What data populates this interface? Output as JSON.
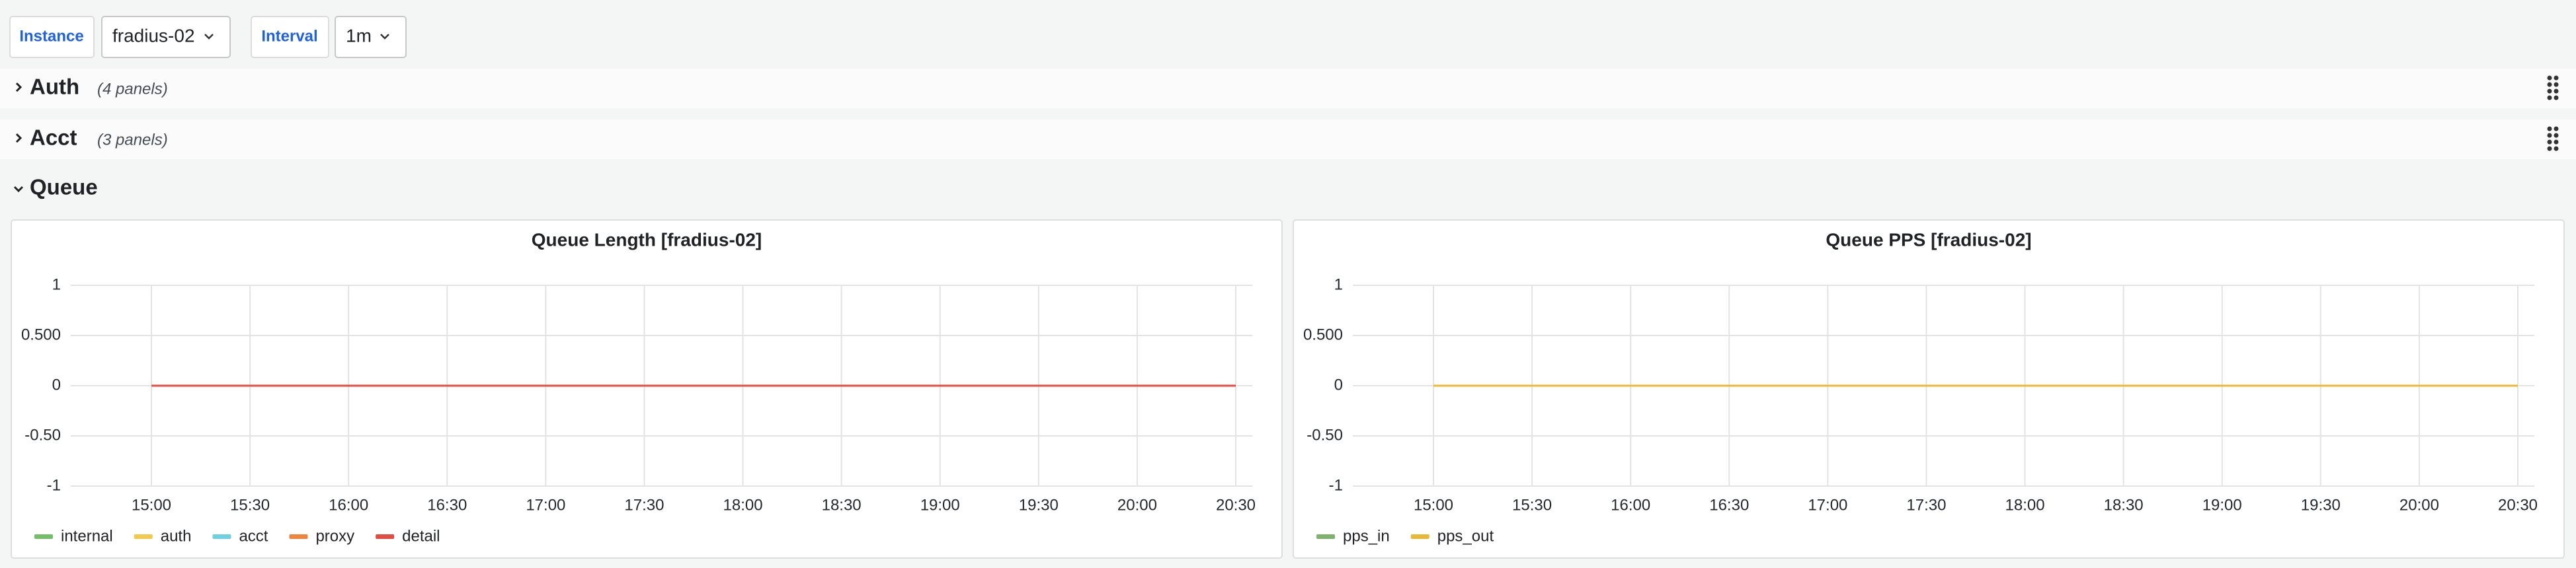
{
  "variables": [
    {
      "label": "Instance",
      "value": "fradius-02"
    },
    {
      "label": "Interval",
      "value": "1m"
    }
  ],
  "rows": [
    {
      "title": "Auth",
      "count": "(4 panels)"
    },
    {
      "title": "Acct",
      "count": "(3 panels)"
    },
    {
      "title": "Queue"
    }
  ],
  "chart_data": [
    {
      "type": "line",
      "title": "Queue Length [fradius-02]",
      "categories": [
        "15:00",
        "15:30",
        "16:00",
        "16:30",
        "17:00",
        "17:30",
        "18:00",
        "18:30",
        "19:00",
        "19:30",
        "20:00",
        "20:30"
      ],
      "series": [
        {
          "name": "internal",
          "color": "#73bf69",
          "values": [
            0,
            0,
            0,
            0,
            0,
            0,
            0,
            0,
            0,
            0,
            0,
            0
          ]
        },
        {
          "name": "auth",
          "color": "#f2c94c",
          "values": [
            0,
            0,
            0,
            0,
            0,
            0,
            0,
            0,
            0,
            0,
            0,
            0
          ]
        },
        {
          "name": "acct",
          "color": "#6ed0e0",
          "values": [
            0,
            0,
            0,
            0,
            0,
            0,
            0,
            0,
            0,
            0,
            0,
            0
          ]
        },
        {
          "name": "proxy",
          "color": "#ef843c",
          "values": [
            0,
            0,
            0,
            0,
            0,
            0,
            0,
            0,
            0,
            0,
            0,
            0
          ]
        },
        {
          "name": "detail",
          "color": "#e24d42",
          "values": [
            0,
            0,
            0,
            0,
            0,
            0,
            0,
            0,
            0,
            0,
            0,
            0
          ]
        }
      ],
      "ylim": [
        -1,
        1
      ],
      "yticks": [
        -1,
        {
          "value": -0.5,
          "label": "-0.50"
        },
        0,
        {
          "value": 0.5,
          "label": "0.500"
        },
        1
      ],
      "grid": true
    },
    {
      "type": "line",
      "title": "Queue PPS [fradius-02]",
      "categories": [
        "15:00",
        "15:30",
        "16:00",
        "16:30",
        "17:00",
        "17:30",
        "18:00",
        "18:30",
        "19:00",
        "19:30",
        "20:00",
        "20:30"
      ],
      "series": [
        {
          "name": "pps_in",
          "color": "#7eb26d",
          "values": [
            0,
            0,
            0,
            0,
            0,
            0,
            0,
            0,
            0,
            0,
            0,
            0
          ]
        },
        {
          "name": "pps_out",
          "color": "#eab839",
          "values": [
            0,
            0,
            0,
            0,
            0,
            0,
            0,
            0,
            0,
            0,
            0,
            0
          ]
        }
      ],
      "ylim": [
        -1,
        1
      ],
      "yticks": [
        -1,
        {
          "value": -0.5,
          "label": "-0.50"
        },
        0,
        {
          "value": 0.5,
          "label": "0.500"
        },
        1
      ],
      "grid": true
    }
  ]
}
